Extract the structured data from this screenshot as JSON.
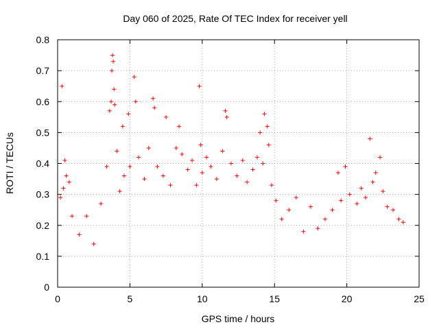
{
  "chart_data": {
    "type": "scatter",
    "title": "Day 060 of 2025, Rate Of TEC Index for receiver yell",
    "xlabel": "GPS time / hours",
    "ylabel": "ROTI / TECUs",
    "xlim": [
      0,
      25
    ],
    "ylim": [
      0,
      0.8
    ],
    "xticks": [
      0,
      5,
      10,
      15,
      20,
      25
    ],
    "yticks": [
      0,
      0.1,
      0.2,
      0.3,
      0.4,
      0.5,
      0.6,
      0.7,
      0.8
    ],
    "xtick_labels": [
      "0",
      "5",
      "10",
      "15",
      "20",
      "25"
    ],
    "ytick_labels": [
      "0",
      "0.1",
      "0.2",
      "0.3",
      "0.4",
      "0.5",
      "0.6",
      "0.7",
      "0.8"
    ],
    "grid": true,
    "marker": "+",
    "color": "#ff0000",
    "series": [
      {
        "name": "ROTI",
        "points": [
          [
            0.3,
            0.65
          ],
          [
            3.6,
            0.57
          ],
          [
            3.7,
            0.6
          ],
          [
            3.75,
            0.7
          ],
          [
            3.8,
            0.75
          ],
          [
            3.85,
            0.73
          ],
          [
            3.9,
            0.64
          ],
          [
            3.95,
            0.59
          ],
          [
            5.3,
            0.68
          ],
          [
            5.4,
            0.6
          ],
          [
            4.5,
            0.52
          ],
          [
            4.9,
            0.56
          ],
          [
            6.6,
            0.61
          ],
          [
            6.7,
            0.58
          ],
          [
            7.5,
            0.55
          ],
          [
            8.4,
            0.52
          ],
          [
            9.8,
            0.65
          ],
          [
            9.9,
            0.46
          ],
          [
            11.6,
            0.57
          ],
          [
            11.7,
            0.55
          ],
          [
            14.0,
            0.5
          ],
          [
            14.3,
            0.56
          ],
          [
            14.5,
            0.52
          ],
          [
            14.6,
            0.46
          ],
          [
            14.2,
            0.4
          ],
          [
            21.6,
            0.48
          ],
          [
            22.3,
            0.42
          ],
          [
            19.9,
            0.39
          ],
          [
            19.4,
            0.37
          ],
          [
            22.0,
            0.37
          ],
          [
            0.2,
            0.29
          ],
          [
            0.4,
            0.32
          ],
          [
            0.5,
            0.41
          ],
          [
            0.6,
            0.36
          ],
          [
            0.8,
            0.34
          ],
          [
            1.0,
            0.23
          ],
          [
            1.5,
            0.17
          ],
          [
            2.0,
            0.23
          ],
          [
            2.5,
            0.14
          ],
          [
            3.0,
            0.27
          ],
          [
            3.4,
            0.39
          ],
          [
            4.1,
            0.44
          ],
          [
            4.3,
            0.31
          ],
          [
            4.6,
            0.36
          ],
          [
            5.0,
            0.39
          ],
          [
            5.6,
            0.42
          ],
          [
            6.0,
            0.35
          ],
          [
            6.3,
            0.45
          ],
          [
            6.9,
            0.39
          ],
          [
            7.3,
            0.36
          ],
          [
            7.8,
            0.33
          ],
          [
            8.2,
            0.45
          ],
          [
            8.6,
            0.43
          ],
          [
            9.0,
            0.38
          ],
          [
            9.3,
            0.41
          ],
          [
            9.6,
            0.33
          ],
          [
            10.0,
            0.37
          ],
          [
            10.3,
            0.42
          ],
          [
            10.6,
            0.39
          ],
          [
            11.0,
            0.35
          ],
          [
            11.4,
            0.44
          ],
          [
            12.0,
            0.4
          ],
          [
            12.4,
            0.36
          ],
          [
            12.8,
            0.41
          ],
          [
            13.1,
            0.34
          ],
          [
            13.5,
            0.38
          ],
          [
            13.8,
            0.42
          ],
          [
            14.8,
            0.33
          ],
          [
            15.1,
            0.28
          ],
          [
            15.5,
            0.22
          ],
          [
            16.0,
            0.25
          ],
          [
            16.5,
            0.29
          ],
          [
            17.0,
            0.18
          ],
          [
            17.5,
            0.26
          ],
          [
            18.0,
            0.19
          ],
          [
            18.5,
            0.22
          ],
          [
            19.0,
            0.25
          ],
          [
            19.6,
            0.28
          ],
          [
            20.2,
            0.3
          ],
          [
            20.7,
            0.27
          ],
          [
            21.0,
            0.32
          ],
          [
            21.3,
            0.29
          ],
          [
            21.8,
            0.34
          ],
          [
            22.5,
            0.31
          ],
          [
            22.8,
            0.26
          ],
          [
            23.2,
            0.25
          ],
          [
            23.6,
            0.22
          ],
          [
            23.9,
            0.21
          ]
        ]
      }
    ]
  }
}
